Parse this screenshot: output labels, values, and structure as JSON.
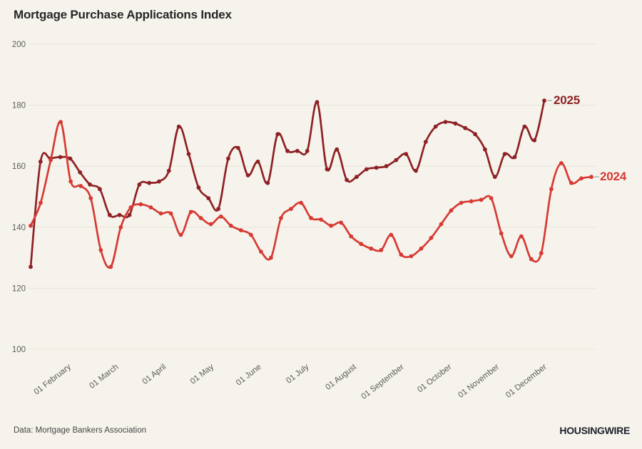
{
  "page": {
    "title": "Mortgage Purchase Applications Index",
    "source_note": "Data: Mortgage Bankers Association",
    "brand_logo": "HOUSINGWIRE",
    "background_color": "#f6f3ec",
    "gridline_color": "#e8e4da",
    "axis_text_color": "#5c5c5c"
  },
  "chart_data": {
    "type": "line",
    "title": "Mortgage Purchase Applications Index",
    "xlabel": "",
    "ylabel": "",
    "ylim": [
      100,
      200
    ],
    "y_ticks": [
      100,
      120,
      140,
      160,
      180,
      200
    ],
    "x_tick_labels": [
      "01 February",
      "01 March",
      "01 April",
      "01 May",
      "01 June",
      "01 July",
      "01 August",
      "01 September",
      "01 October",
      "01 November",
      "01 December"
    ],
    "grid": "horizontal only",
    "legend_position": "end-of-line labels",
    "frequency": "weekly",
    "series": [
      {
        "name": "2025",
        "color": "#8e2124",
        "values": [
          127,
          161.5,
          162.5,
          163,
          162.5,
          158,
          154,
          152.5,
          144,
          144,
          144,
          154,
          154.5,
          155,
          158.5,
          173,
          164,
          153,
          149.5,
          146,
          162.5,
          166,
          157,
          161.5,
          154.5,
          170.5,
          165,
          165,
          165,
          181,
          159,
          165.5,
          155.5,
          156.5,
          159,
          159.5,
          160,
          162,
          164,
          158.5,
          168,
          173,
          174.5,
          174,
          172.5,
          170.5,
          165.5,
          156.5,
          164,
          163,
          173,
          168.5,
          181.5
        ]
      },
      {
        "name": "2024",
        "color": "#d63a33",
        "values": [
          140.5,
          148,
          162,
          174.5,
          155,
          153.5,
          149.5,
          132.5,
          127,
          140,
          146.5,
          147.5,
          146.5,
          144.5,
          144.5,
          137.5,
          145,
          143,
          141,
          143.5,
          140.5,
          139,
          137.5,
          132,
          130,
          143,
          146,
          148,
          143,
          142.5,
          140.5,
          141.5,
          137,
          134.5,
          133,
          132.5,
          137.5,
          131,
          130.5,
          133,
          136.5,
          141,
          145.5,
          148,
          148.5,
          149,
          149.5,
          138,
          130.5,
          137,
          129.5,
          131.5,
          152.5,
          161,
          154.5,
          156,
          156.5
        ]
      }
    ]
  }
}
